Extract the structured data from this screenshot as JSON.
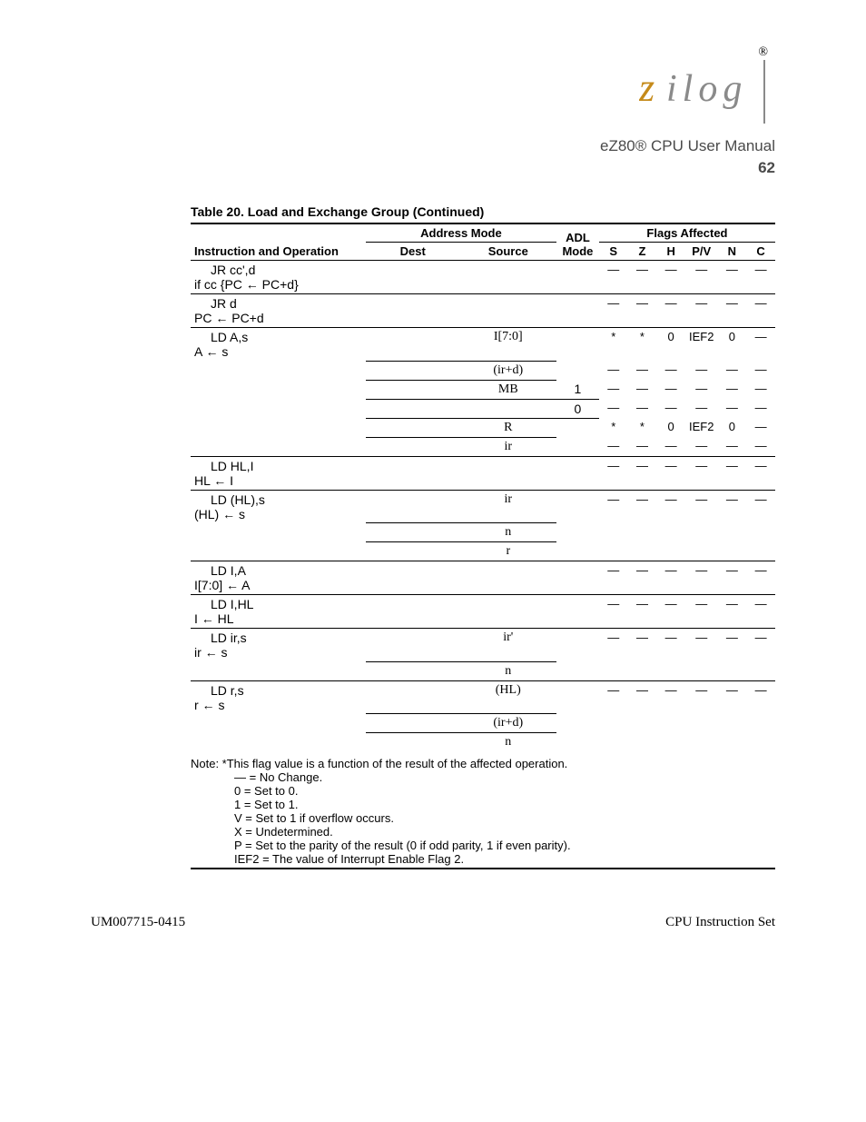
{
  "header": {
    "reg_mark": "®",
    "doc_title": "eZ80® CPU User Manual",
    "page_number": "62"
  },
  "caption": "Table 20. Load and Exchange Group (Continued)",
  "columns": {
    "instr_ops": "Instruction and Operation",
    "addr_mode": "Address Mode",
    "dest": "Dest",
    "src": "Source",
    "adl": "ADL Mode",
    "flags": "Flags Affected",
    "S": "S",
    "Z": "Z",
    "H": "H",
    "P": "P/V",
    "N": "N",
    "C": "C"
  },
  "rows": [
    {
      "mnems": [
        "JR cc',d",
        "if cc {PC ← PC+d}"
      ],
      "dest": "",
      "src": "",
      "adl": "",
      "S": "—",
      "Z": "—",
      "H": "—",
      "P": "—",
      "N": "—",
      "C": "—",
      "topline": true
    },
    {
      "mnems": [
        "JR d",
        "PC ← PC+d"
      ],
      "dest": "",
      "src": "",
      "adl": "",
      "S": "—",
      "Z": "—",
      "H": "—",
      "P": "—",
      "N": "—",
      "C": "—",
      "topline": true
    },
    {
      "mnems": [
        "LD A,s",
        "A ← s"
      ],
      "dest": "",
      "src": "I[7:0]",
      "adl": "",
      "S": "*",
      "Z": "*",
      "H": "0",
      "P": "IEF2",
      "N": "0",
      "C": "—",
      "topline": true,
      "dest_under": true,
      "src_under": true
    },
    {
      "mnems": [],
      "dest": "",
      "src": "(ir+d)",
      "adl": "",
      "S": "—",
      "Z": "—",
      "H": "—",
      "P": "—",
      "N": "—",
      "C": "—",
      "dest_under": true,
      "src_under": true
    },
    {
      "mnems": [],
      "dest": "",
      "src": "MB",
      "adl": "1",
      "S": "—",
      "Z": "—",
      "H": "—",
      "P": "—",
      "N": "—",
      "C": "—",
      "dest_under": true,
      "src_under": true,
      "adl_under": true
    },
    {
      "mnems": [],
      "dest": "",
      "src": "",
      "adl": "0",
      "S": "—",
      "Z": "—",
      "H": "—",
      "P": "—",
      "N": "—",
      "C": "—",
      "dest_under": true,
      "src_under": true,
      "adl_under": true
    },
    {
      "mnems": [],
      "dest": "",
      "src": "R",
      "adl": "",
      "S": "*",
      "Z": "*",
      "H": "0",
      "P": "IEF2",
      "N": "0",
      "C": "—",
      "dest_under": true,
      "src_under": true
    },
    {
      "mnems": [],
      "dest": "",
      "src": "ir",
      "adl": "",
      "S": "—",
      "Z": "—",
      "H": "—",
      "P": "—",
      "N": "—",
      "C": "—"
    },
    {
      "mnems": [
        "LD HL,I",
        "HL ← I"
      ],
      "dest": "",
      "src": "",
      "adl": "",
      "S": "—",
      "Z": "—",
      "H": "—",
      "P": "—",
      "N": "—",
      "C": "—",
      "topline": true
    },
    {
      "mnems": [
        "LD (HL),s",
        "(HL) ← s"
      ],
      "dest": "",
      "src": "ir",
      "adl": "",
      "S": "—",
      "Z": "—",
      "H": "—",
      "P": "—",
      "N": "—",
      "C": "—",
      "topline": true,
      "dest_under": true,
      "src_under": true
    },
    {
      "mnems": [],
      "dest": "",
      "src": "n",
      "adl": "",
      "dest_under": true,
      "src_under": true
    },
    {
      "mnems": [],
      "dest": "",
      "src": "r",
      "adl": ""
    },
    {
      "mnems": [
        "LD I,A",
        "I[7:0] ← A"
      ],
      "dest": "",
      "src": "",
      "adl": "",
      "S": "—",
      "Z": "—",
      "H": "—",
      "P": "—",
      "N": "—",
      "C": "—",
      "topline": true
    },
    {
      "mnems": [
        "LD I,HL",
        "I ← HL"
      ],
      "dest": "",
      "src": "",
      "adl": "",
      "S": "—",
      "Z": "—",
      "H": "—",
      "P": "—",
      "N": "—",
      "C": "—",
      "topline": true
    },
    {
      "mnems": [
        "LD ir,s",
        "ir ← s"
      ],
      "dest": "",
      "src": "ir'",
      "adl": "",
      "S": "—",
      "Z": "—",
      "H": "—",
      "P": "—",
      "N": "—",
      "C": "—",
      "topline": true,
      "dest_under": true,
      "src_under": true
    },
    {
      "mnems": [],
      "dest": "",
      "src": "n",
      "adl": ""
    },
    {
      "mnems": [
        "LD r,s",
        "r ← s"
      ],
      "dest": "",
      "src": "(HL)",
      "adl": "",
      "S": "—",
      "Z": "—",
      "H": "—",
      "P": "—",
      "N": "—",
      "C": "—",
      "topline": true,
      "dest_under": true,
      "src_under": true
    },
    {
      "mnems": [],
      "dest": "",
      "src": "(ir+d)",
      "adl": "",
      "dest_under": true,
      "src_under": true
    },
    {
      "mnems": [],
      "dest": "",
      "src": "n",
      "adl": ""
    }
  ],
  "notes": [
    "Note: *This flag value is a function of the result of the affected operation.",
    "— = No Change.",
    "0 = Set to 0.",
    "1 = Set to 1.",
    "V = Set to 1 if overflow occurs.",
    "X = Undetermined.",
    "P = Set to the parity of the result (0 if odd parity, 1 if even parity).",
    "IEF2 = The value of Interrupt Enable Flag 2."
  ],
  "footer": {
    "left": "UM007715-0415",
    "right": "CPU Instruction Set"
  }
}
